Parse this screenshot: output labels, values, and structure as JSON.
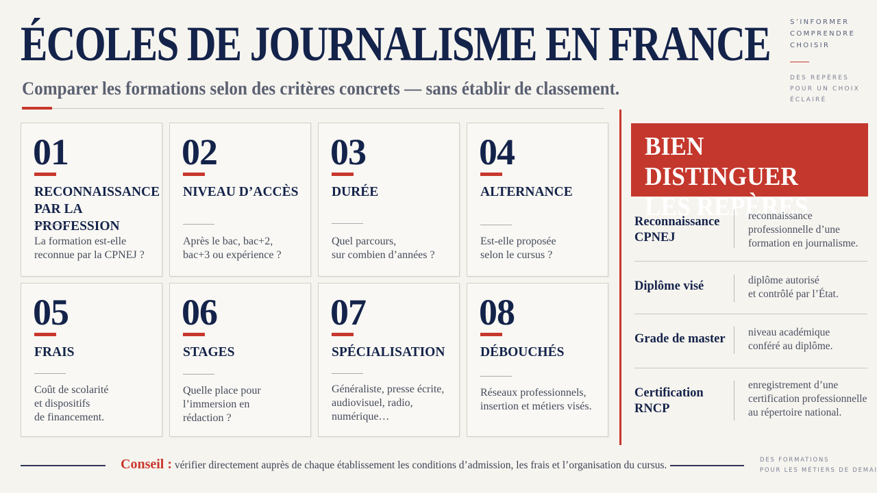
{
  "header": {
    "title": "ÉCOLES DE JOURNALISME EN FRANCE",
    "subtitle": "Comparer les formations selon des critères concrets — sans établir de classement."
  },
  "side_tags": {
    "top": [
      "S’INFORMER",
      "COMPRENDRE",
      "CHOISIR"
    ],
    "middle": [
      "DES REPÈRES",
      "POUR UN CHOIX",
      "ÉCLAIRÉ"
    ]
  },
  "cards": [
    {
      "number": "01",
      "title": "RECONNAISSANCE\nPAR LA PROFESSION",
      "desc": "La formation est-elle\nreconnue par la CPNEJ ?"
    },
    {
      "number": "02",
      "title": "NIVEAU D’ACCÈS",
      "desc": "Après le bac, bac+2,\nbac+3 ou expérience ?"
    },
    {
      "number": "03",
      "title": "DURÉE",
      "desc": "Quel parcours,\nsur combien d’années ?"
    },
    {
      "number": "04",
      "title": "ALTERNANCE",
      "desc": "Est-elle proposée\nselon le cursus ?"
    },
    {
      "number": "05",
      "title": "FRAIS",
      "desc": "Coût de scolarité\net dispositifs\nde financement."
    },
    {
      "number": "06",
      "title": "STAGES",
      "desc": "Quelle place pour\nl’immersion en\nrédaction ?"
    },
    {
      "number": "07",
      "title": "SPÉCIALISATION",
      "desc": "Généraliste, presse écrite,\naudiovisuel, radio,\nnumérique…"
    },
    {
      "number": "08",
      "title": "DÉBOUCHÉS",
      "desc": "Réseaux professionnels,\ninsertion et métiers visés."
    }
  ],
  "panel": {
    "title": "BIEN DISTINGUER\nLES REPÈRES",
    "definitions": [
      {
        "term": "Reconnaissance\nCPNEJ",
        "text": "reconnaissance\nprofessionnelle d’une\nformation en journalisme."
      },
      {
        "term": "Diplôme visé",
        "text": "diplôme autorisé\net contrôlé par l’État."
      },
      {
        "term": "Grade de master",
        "text": "niveau académique\nconféré au diplôme."
      },
      {
        "term": "Certification\nRNCP",
        "text": "enregistrement d’une\ncertification professionnelle\nau répertoire national."
      }
    ]
  },
  "footer": {
    "label": "Conseil :",
    "text": "vérifier directement auprès de chaque établissement les conditions d’admission, les frais et l’organisation du cursus.",
    "tag": [
      "DES FORMATIONS",
      "POUR LES MÉTIERS DE DEMAIN"
    ]
  },
  "colors": {
    "navy": "#14234a",
    "accent_red": "#c8372d",
    "background": "#f6f4ef"
  }
}
